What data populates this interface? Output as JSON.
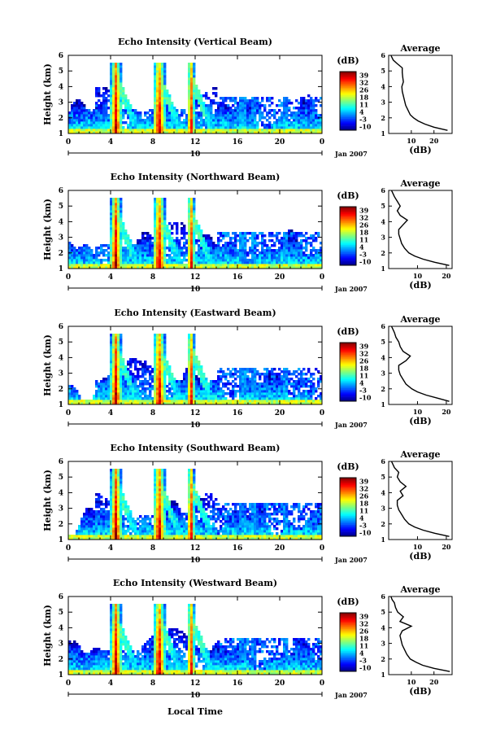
{
  "figure": {
    "xlabel": "Local Time",
    "date_label": "Jan 2007",
    "day_label": "10"
  },
  "chart_data": [
    {
      "type": "heatmap",
      "title": "Echo Intensity (Vertical Beam)",
      "ylabel": "Height (km)",
      "x_ticks": [
        "0",
        "4",
        "8",
        "12",
        "16",
        "20",
        "0"
      ],
      "y_ticks": [
        "1",
        "2",
        "3",
        "4",
        "5",
        "6"
      ],
      "xlim": [
        0,
        24
      ],
      "ylim": [
        1,
        6
      ],
      "colorbar": {
        "label": "(dB)",
        "ticks": [
          "39",
          "32",
          "26",
          "18",
          "11",
          "4",
          "-3",
          "-10"
        ],
        "range": [
          -10,
          39
        ]
      },
      "profile": {
        "title": "Average",
        "xlabel": "(dB)",
        "x_ticks": [
          "10",
          "20"
        ],
        "xlim": [
          0,
          28
        ],
        "x": [
          26,
          20,
          16,
          13,
          11,
          9.5,
          8.5,
          7.5,
          7,
          6.5,
          6,
          5.8,
          6.5,
          6.2,
          6,
          6,
          3.5,
          2,
          1.5,
          1
        ],
        "y": [
          1.2,
          1.4,
          1.6,
          1.8,
          2.0,
          2.2,
          2.5,
          2.8,
          3.1,
          3.4,
          3.7,
          4.0,
          4.3,
          4.6,
          4.9,
          5.2,
          5.5,
          5.7,
          5.85,
          6.0
        ]
      }
    },
    {
      "type": "heatmap",
      "title": "Echo Intensity (Northward Beam)",
      "ylabel": "Height (km)",
      "x_ticks": [
        "0",
        "4",
        "8",
        "12",
        "16",
        "20",
        "0"
      ],
      "y_ticks": [
        "1",
        "2",
        "3",
        "4",
        "5",
        "6"
      ],
      "xlim": [
        0,
        24
      ],
      "ylim": [
        1,
        6
      ],
      "colorbar": {
        "label": "(dB)",
        "ticks": [
          "39",
          "32",
          "26",
          "18",
          "11",
          "4",
          "-3",
          "-10"
        ],
        "range": [
          -10,
          39
        ]
      },
      "profile": {
        "title": "Average",
        "xlabel": "(dB)",
        "x_ticks": [
          "10",
          "20"
        ],
        "xlim": [
          0,
          22
        ],
        "x": [
          21,
          16,
          12,
          9,
          7,
          5.5,
          4.5,
          4,
          3.5,
          3.5,
          5,
          6.5,
          4,
          3,
          4,
          3,
          2,
          1.5,
          1
        ],
        "y": [
          1.2,
          1.4,
          1.6,
          1.8,
          2.0,
          2.3,
          2.6,
          2.9,
          3.2,
          3.5,
          3.8,
          4.1,
          4.4,
          4.7,
          5.0,
          5.3,
          5.6,
          5.8,
          6.0
        ]
      }
    },
    {
      "type": "heatmap",
      "title": "Echo Intensity (Eastward Beam)",
      "ylabel": "Height (km)",
      "x_ticks": [
        "0",
        "4",
        "8",
        "12",
        "16",
        "20",
        "0"
      ],
      "y_ticks": [
        "1",
        "2",
        "3",
        "4",
        "5",
        "6"
      ],
      "xlim": [
        0,
        24
      ],
      "ylim": [
        1,
        6
      ],
      "colorbar": {
        "label": "(dB)",
        "ticks": [
          "39",
          "32",
          "26",
          "18",
          "11",
          "4",
          "-3",
          "-10"
        ],
        "range": [
          -10,
          39
        ]
      },
      "profile": {
        "title": "Average",
        "xlabel": "(dB)",
        "x_ticks": [
          "10",
          "20"
        ],
        "xlim": [
          0,
          22
        ],
        "x": [
          21,
          17,
          13,
          10,
          8,
          6,
          5,
          4,
          3.5,
          3.5,
          6,
          7.5,
          5,
          4,
          3.5,
          2.5,
          2,
          1.5,
          1
        ],
        "y": [
          1.2,
          1.4,
          1.6,
          1.8,
          2.0,
          2.3,
          2.6,
          2.9,
          3.2,
          3.5,
          3.8,
          4.1,
          4.4,
          4.7,
          5.0,
          5.3,
          5.6,
          5.8,
          6.0
        ]
      }
    },
    {
      "type": "heatmap",
      "title": "Echo Intensity (Southward Beam)",
      "ylabel": "Height (km)",
      "x_ticks": [
        "0",
        "4",
        "8",
        "12",
        "16",
        "20",
        "0"
      ],
      "y_ticks": [
        "1",
        "2",
        "3",
        "4",
        "5",
        "6"
      ],
      "xlim": [
        0,
        24
      ],
      "ylim": [
        1,
        6
      ],
      "colorbar": {
        "label": "(dB)",
        "ticks": [
          "39",
          "32",
          "26",
          "18",
          "11",
          "4",
          "-3",
          "-10"
        ],
        "range": [
          -10,
          39
        ]
      },
      "profile": {
        "title": "Average",
        "xlabel": "(dB)",
        "x_ticks": [
          "10",
          "20"
        ],
        "xlim": [
          0,
          22
        ],
        "x": [
          21,
          16,
          12,
          9,
          7,
          5.5,
          4.5,
          3.5,
          3,
          3,
          5,
          4,
          6,
          4,
          3,
          3.5,
          2,
          1.5,
          1
        ],
        "y": [
          1.2,
          1.4,
          1.6,
          1.8,
          2.0,
          2.3,
          2.6,
          2.9,
          3.2,
          3.5,
          3.8,
          4.1,
          4.4,
          4.7,
          5.0,
          5.3,
          5.6,
          5.8,
          6.0
        ]
      }
    },
    {
      "type": "heatmap",
      "title": "Echo Intensity (Westward Beam)",
      "ylabel": "Height (km)",
      "x_ticks": [
        "0",
        "4",
        "8",
        "12",
        "16",
        "20",
        "0"
      ],
      "y_ticks": [
        "1",
        "2",
        "3",
        "4",
        "5",
        "6"
      ],
      "xlim": [
        0,
        24
      ],
      "ylim": [
        1,
        6
      ],
      "colorbar": {
        "label": "(dB)",
        "ticks": [
          "39",
          "32",
          "26",
          "18",
          "11",
          "4",
          "-3",
          "-10"
        ],
        "range": [
          -10,
          39
        ]
      },
      "profile": {
        "title": "Average",
        "xlabel": "(dB)",
        "x_ticks": [
          "10",
          "20"
        ],
        "xlim": [
          0,
          28
        ],
        "x": [
          27,
          20,
          15,
          12,
          9.5,
          8,
          7,
          6,
          5.5,
          5,
          6,
          10,
          5,
          6.5,
          4,
          3,
          2.5,
          1.5,
          1
        ],
        "y": [
          1.2,
          1.4,
          1.6,
          1.8,
          2.0,
          2.3,
          2.6,
          2.9,
          3.2,
          3.5,
          3.8,
          4.1,
          4.4,
          4.7,
          5.0,
          5.3,
          5.6,
          5.8,
          6.0
        ]
      }
    }
  ]
}
